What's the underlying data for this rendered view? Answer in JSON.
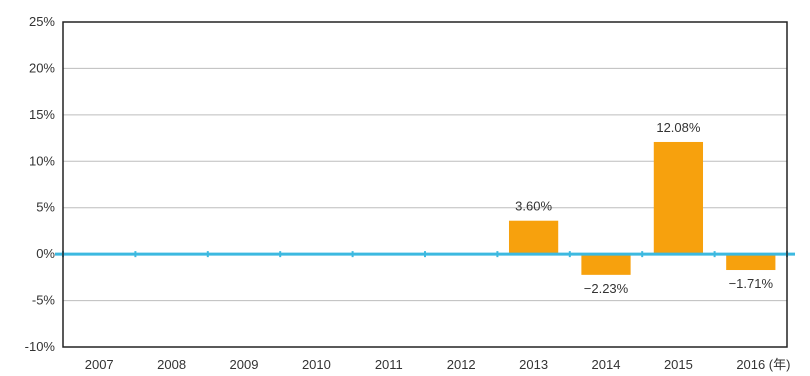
{
  "chart_data": {
    "type": "bar",
    "categories": [
      "2007",
      "2008",
      "2009",
      "2010",
      "2011",
      "2012",
      "2013",
      "2014",
      "2015",
      "2016"
    ],
    "values": [
      null,
      null,
      null,
      null,
      null,
      null,
      3.6,
      -2.23,
      12.08,
      -1.71
    ],
    "data_labels": [
      "",
      "",
      "",
      "",
      "",
      "",
      "3.60%",
      "−2.23%",
      "12.08%",
      "−1.71%"
    ],
    "y_ticks": [
      25,
      20,
      15,
      10,
      5,
      0,
      -5,
      -10
    ],
    "y_tick_labels": [
      "25%",
      "20%",
      "15%",
      "10%",
      "5%",
      "0%",
      "-5%",
      "-10%"
    ],
    "x_unit": "(年)",
    "ylim": [
      -10,
      25
    ],
    "grid": true,
    "legend": "none",
    "title": "",
    "xlabel": "",
    "ylabel": "",
    "colors": {
      "bar": "#f7a10d",
      "zero_line": "#3cb9e0",
      "grid": "#bdbdbd",
      "frame": "#222222"
    }
  }
}
